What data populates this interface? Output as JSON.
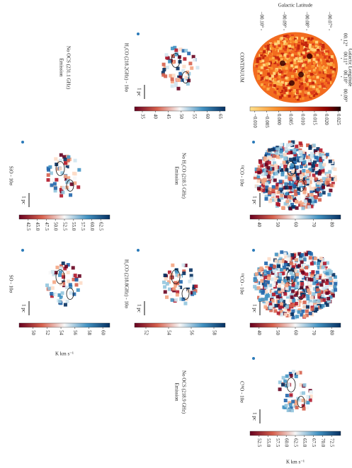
{
  "axes": {
    "x_label": "Galactic Latitude",
    "y_label": "Galactic Longitude",
    "xlim": [
      -0.105,
      -0.065
    ],
    "xticks": [
      {
        "value": -0.1,
        "label": "−00.10°"
      },
      {
        "value": -0.09,
        "label": "−00.09°"
      },
      {
        "value": -0.08,
        "label": "−00.08°"
      },
      {
        "value": -0.07,
        "label": "−00.07°"
      }
    ],
    "ylim": [
      0.125,
      0.085
    ],
    "yticks": [
      {
        "value": 0.12,
        "label": "00.12°"
      },
      {
        "value": 0.11,
        "label": "00.11°"
      },
      {
        "value": 0.1,
        "label": "00.10°"
      },
      {
        "value": 0.09,
        "label": "00.09°"
      }
    ]
  },
  "panels": [
    {
      "title": "CONTINUUM",
      "cmap": "heat",
      "colorbar": {
        "range": [
          -0.012,
          0.026
        ],
        "ticks": [
          {
            "value": -0.01,
            "label": "−0.010"
          },
          {
            "value": -0.005,
            "label": "−0.005"
          },
          {
            "value": 0,
            "label": "0.000"
          },
          {
            "value": 0.005,
            "label": "0.005"
          },
          {
            "value": 0.01,
            "label": "0.010"
          },
          {
            "value": 0.015,
            "label": "0.015"
          },
          {
            "value": 0.02,
            "label": "0.020"
          },
          {
            "value": 0.025,
            "label": "0.025"
          }
        ]
      }
    },
    {
      "title": "¹²CO - 10σ",
      "cmap": "rdbu",
      "colorbar": {
        "range": [
          35,
          85
        ],
        "ticks": [
          40,
          50,
          60,
          70,
          80
        ]
      },
      "scalebar": "1 pc"
    },
    {
      "title": "¹³CO - 10σ",
      "cmap": "rdbu",
      "colorbar": {
        "range": [
          35,
          85
        ],
        "ticks": [
          40,
          50,
          60,
          70,
          80
        ]
      },
      "scalebar": "1 pc"
    },
    {
      "title": "C¹⁸O - 10σ",
      "cmap": "rdbu",
      "colorbar": {
        "range": [
          50,
          75
        ],
        "ticks": [
          52.5,
          {
            "value": 55,
            "label": "55.0"
          },
          57.5,
          {
            "value": 60,
            "label": "60.0"
          },
          62.5,
          {
            "value": 65,
            "label": "65.0"
          },
          67.5,
          {
            "value": 70,
            "label": "70.0"
          },
          72.5
        ],
        "unit": "K km s⁻¹"
      },
      "scalebar": "1 pc"
    },
    {
      "title": "H₂CO (218.2GHz) - 10σ",
      "cmap": "rdbu",
      "colorbar": {
        "range": [
          32,
          67
        ],
        "ticks": [
          35,
          40,
          45,
          50,
          55,
          60,
          65
        ]
      },
      "scalebar": "1 pc"
    },
    {
      "lines": [
        "No H₂CO (218.5 GHz)",
        "Emission"
      ]
    },
    {
      "title": "H₂CO (218.8GHz) - 10σ",
      "cmap": "rdbu",
      "colorbar": {
        "range": [
          51,
          59
        ],
        "ticks": [
          52,
          54,
          56,
          58
        ]
      },
      "scalebar": "1 pc"
    },
    {
      "lines": [
        "No OCS (218.9 GHz)",
        "Emission"
      ]
    },
    {
      "lines": [
        "No OCS (231.1 GHz)",
        "Emission"
      ]
    },
    {
      "title": "SiO - 10σ",
      "cmap": "rdbu",
      "colorbar": {
        "range": [
          40,
          65
        ],
        "ticks": [
          42.5,
          {
            "value": 45,
            "label": "45.0"
          },
          47.5,
          {
            "value": 50,
            "label": "50.0"
          },
          52.5,
          {
            "value": 55,
            "label": "55.0"
          },
          57.5,
          {
            "value": 60,
            "label": "60.0"
          },
          62.5
        ]
      },
      "scalebar": "1 pc"
    },
    {
      "title": "SO - 10σ",
      "cmap": "rdbu",
      "colorbar": {
        "range": [
          48,
          61
        ],
        "ticks": [
          50,
          52,
          54,
          56,
          58,
          60
        ],
        "unit": "K km s⁻¹"
      },
      "scalebar": "1 pc"
    }
  ]
}
